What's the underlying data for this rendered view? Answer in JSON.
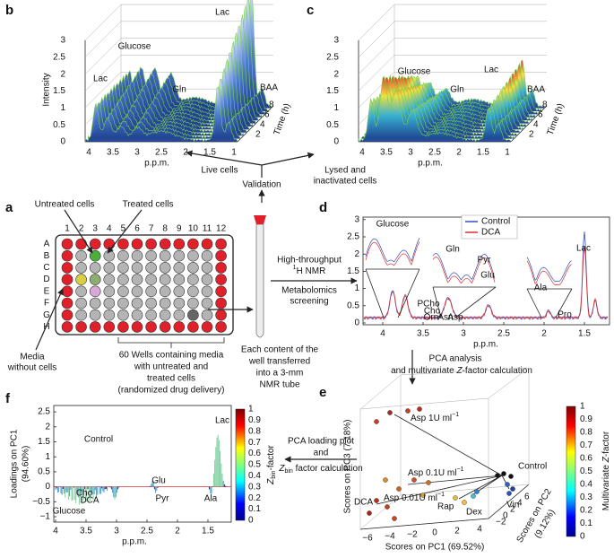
{
  "panels": {
    "b": {
      "label": "b",
      "y_axis_label": "Intensity",
      "y_ticks": [
        "0",
        "0.5",
        "1",
        "1.5",
        "2",
        "2.5",
        "3"
      ],
      "x_ticks": [
        "4",
        "3.5",
        "3",
        "2.5",
        "2",
        "1.5",
        "1"
      ],
      "x_axis_label": "p.p.m.",
      "time_ticks": [
        "2",
        "4",
        "6",
        "8"
      ],
      "time_label": "Time (h)",
      "annotations": [
        "Lac",
        "Glucose",
        "Gln",
        "Lac",
        "BAA"
      ]
    },
    "c": {
      "label": "c",
      "y_ticks": [
        "0",
        "0.5",
        "1",
        "1.5",
        "2",
        "2.5",
        "3"
      ],
      "x_ticks": [
        "4",
        "3.5",
        "3",
        "2.5",
        "2",
        "1.5",
        "1"
      ],
      "x_axis_label": "p.p.m.",
      "time_ticks": [
        "2",
        "4",
        "6",
        "8"
      ],
      "time_label": "Time (h)",
      "annotations": [
        "Glucose",
        "Gln",
        "Lac",
        "BAA"
      ]
    },
    "validation": {
      "center": "Validation",
      "left": "Live cells",
      "right": [
        "Lysed and",
        "inactivated cells"
      ]
    },
    "a": {
      "label": "a",
      "untreated": "Untreated cells",
      "treated": "Treated cells",
      "columns": [
        "1",
        "2",
        "3",
        "4",
        "5",
        "6",
        "7",
        "8",
        "9",
        "10",
        "11",
        "12"
      ],
      "rows": [
        "A",
        "B",
        "C",
        "D",
        "E",
        "F",
        "G",
        "H"
      ],
      "media": [
        "Media",
        "without cells"
      ],
      "wells_note": [
        "60 Wells containing media",
        "with untreated and",
        "treated cells",
        "(randomized drug delivery)"
      ],
      "tube_note": [
        "Each content of the",
        "well transferred",
        "into a 3-mm",
        "NMR tube"
      ],
      "nmr_step": {
        "line1": "High-throughput",
        "superscript": "1",
        "line2": "H NMR",
        "line3": "Metabolomics",
        "line4": "screening"
      }
    },
    "d": {
      "label": "d",
      "legend": [
        "Control",
        "DCA"
      ],
      "annotations": [
        "Glucose",
        "Gln",
        "Pyr",
        "Glu",
        "Lac",
        "Ala",
        "PCho",
        "Cho",
        "Orn",
        "Asn",
        "Asp",
        "Pro"
      ],
      "y_ticks": [
        "0",
        "0.5",
        "1",
        "1.5",
        "2",
        "2.5",
        "3"
      ],
      "x_ticks": [
        "4",
        "3.5",
        "3",
        "2.5",
        "2",
        "1.5"
      ],
      "x_axis_label": "p.p.m."
    },
    "pca_step": {
      "line1": "PCA analysis",
      "line2_pre": "and multivariate ",
      "line2_z": "Z",
      "line2_post": "-factor calculation"
    },
    "e": {
      "label": "e",
      "groups": [
        {
          "text": "Asp 1U ml",
          "superscript": "−1"
        },
        {
          "text": "Asp 0.1U ml",
          "superscript": "−1"
        },
        {
          "text": "Asp 0.01U ml",
          "superscript": "−1"
        }
      ],
      "annotations": [
        "DCA",
        "Rap",
        "Dex",
        "Vin",
        "Control"
      ],
      "x_axis_label": "Scores on PC1 (69.52%)",
      "y_axis_label": "Scores on PC3 (7.18%)",
      "z_axis_label": [
        "Scores on PC2",
        "(9.12%)"
      ],
      "x_ticks": [
        "−6",
        "−4",
        "−2",
        "0",
        "2",
        "4"
      ],
      "z_ticks": [
        "−2",
        "0",
        "2",
        "4",
        "6"
      ],
      "colorbar_ticks": [
        "0",
        "0.1",
        "0.2",
        "0.3",
        "0.4",
        "0.5",
        "0.6",
        "0.7",
        "0.8",
        "0.9",
        "1"
      ],
      "colorbar_label_pre": "Multivariate ",
      "colorbar_label_z": "Z",
      "colorbar_label_post": "-factor"
    },
    "loading_step": {
      "line1": "PCA loading plot",
      "line2": "and",
      "line3_z": "Z",
      "line3_sub": "bin",
      "line3_post": " factor calculation"
    },
    "f": {
      "label": "f",
      "y_axis_label": [
        "Loadings on PC1",
        "(94.60%)"
      ],
      "annotations": [
        "Control",
        "DCA",
        "Glucose",
        "Cho",
        "Glu",
        "Pyr",
        "Lac",
        "Ala"
      ],
      "y_ticks": [
        "−1",
        "−0.5",
        "0",
        "0.5",
        "1",
        "1.5",
        "2",
        "2.5"
      ],
      "x_ticks": [
        "4",
        "3.5",
        "3",
        "2.5",
        "2",
        "1.5"
      ],
      "x_axis_label": "p.p.m.",
      "colorbar_ticks": [
        "0",
        "0.1",
        "0.2",
        "0.3",
        "0.4",
        "0.5",
        "0.6",
        "0.7",
        "0.8",
        "0.9",
        "1"
      ],
      "colorbar_label_z": "Z",
      "colorbar_label_sub": "bin",
      "colorbar_label_post": "-factor"
    }
  }
}
